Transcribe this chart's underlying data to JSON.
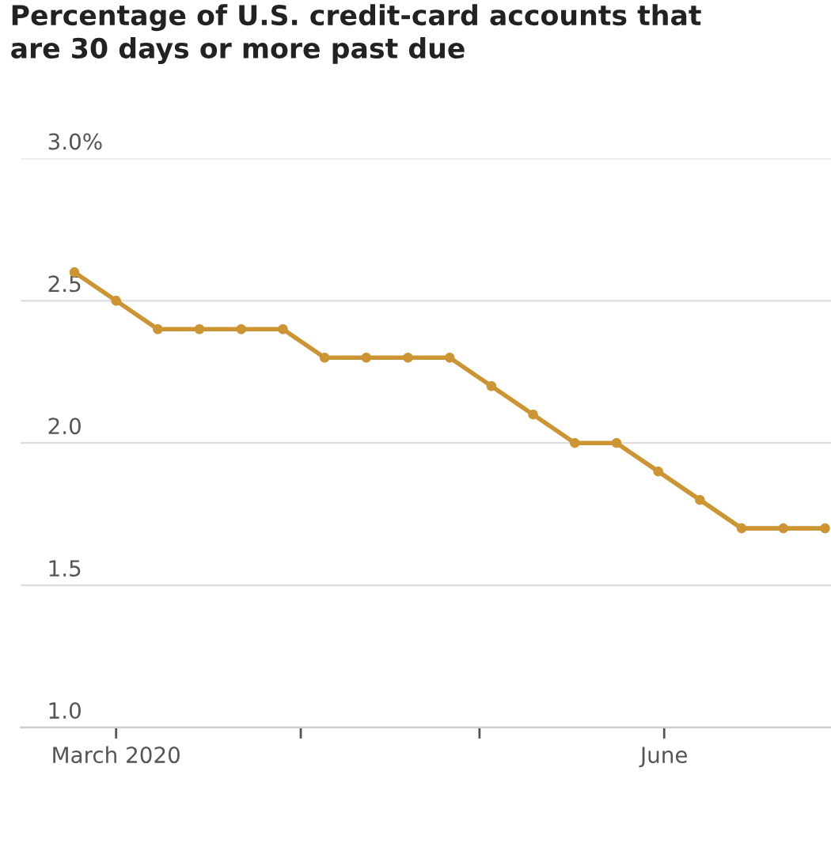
{
  "chart_data": {
    "type": "line",
    "title": "Percentage of U.S. credit-card accounts that\nare 30 days or more past due",
    "x": [
      "2020-02-23",
      "2020-03-01",
      "2020-03-08",
      "2020-03-15",
      "2020-03-22",
      "2020-03-29",
      "2020-04-05",
      "2020-04-12",
      "2020-04-19",
      "2020-04-26",
      "2020-05-03",
      "2020-05-10",
      "2020-05-17",
      "2020-05-24",
      "2020-05-31",
      "2020-06-07",
      "2020-06-14",
      "2020-06-21",
      "2020-06-28"
    ],
    "series": [
      {
        "color": "#cc9433",
        "values": [
          2.6,
          2.5,
          2.4,
          2.4,
          2.4,
          2.4,
          2.3,
          2.3,
          2.3,
          2.3,
          2.2,
          2.1,
          2.0,
          2.0,
          1.9,
          1.8,
          1.7,
          1.7,
          1.7
        ]
      }
    ],
    "xlim": [
      "2020-02-14",
      "2020-06-29"
    ],
    "xticks": [
      {
        "value": "2020-03-01",
        "label": "March 2020"
      },
      {
        "value": "2020-04-01",
        "label": null
      },
      {
        "value": "2020-05-01",
        "label": null
      },
      {
        "value": "2020-06-01",
        "label": "June"
      }
    ],
    "ylim": [
      1.0,
      3.0
    ],
    "yticks": [
      {
        "value": 1.0,
        "label": "1.0"
      },
      {
        "value": 1.5,
        "label": "1.5"
      },
      {
        "value": 2.0,
        "label": "2.0"
      },
      {
        "value": 2.5,
        "label": "2.5"
      },
      {
        "value": 3.0,
        "label": "3.0%"
      }
    ],
    "grid": "y",
    "marker": "circle",
    "line_style": "solid"
  }
}
